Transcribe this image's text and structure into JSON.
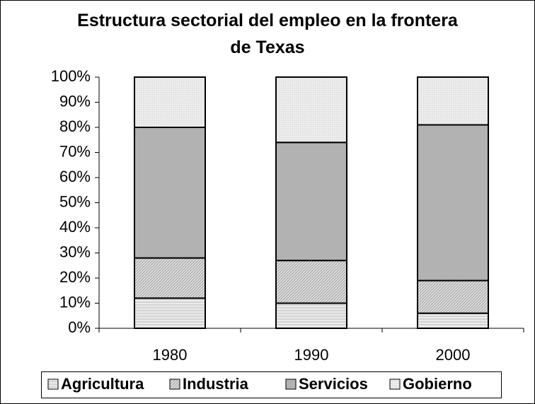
{
  "chart_data": {
    "type": "stacked_bar_100",
    "title": "Estructura sectorial del empleo en la frontera de Texas",
    "categories": [
      "1980",
      "1990",
      "2000"
    ],
    "series": [
      {
        "name": "Agricultura",
        "color": "#d4d4d4",
        "values": [
          12,
          10,
          6
        ]
      },
      {
        "name": "Industria",
        "color": "#dcdcdc",
        "values": [
          16,
          17,
          13
        ]
      },
      {
        "name": "Servicios",
        "color": "#b2b2b2",
        "values": [
          52,
          47,
          62
        ]
      },
      {
        "name": "Gobierno",
        "color": "#e6e6e6",
        "values": [
          20,
          26,
          19
        ]
      }
    ],
    "ylim": [
      0,
      100
    ],
    "yticks": [
      {
        "value": 0,
        "label": "0%"
      },
      {
        "value": 10,
        "label": "10%"
      },
      {
        "value": 20,
        "label": "20%"
      },
      {
        "value": 30,
        "label": "30%"
      },
      {
        "value": 40,
        "label": "40%"
      },
      {
        "value": 50,
        "label": "50%"
      },
      {
        "value": 60,
        "label": "60%"
      },
      {
        "value": 70,
        "label": "70%"
      },
      {
        "value": 80,
        "label": "80%"
      },
      {
        "value": 90,
        "label": "90%"
      },
      {
        "value": 100,
        "label": "100%"
      }
    ],
    "legend": "bottom"
  }
}
